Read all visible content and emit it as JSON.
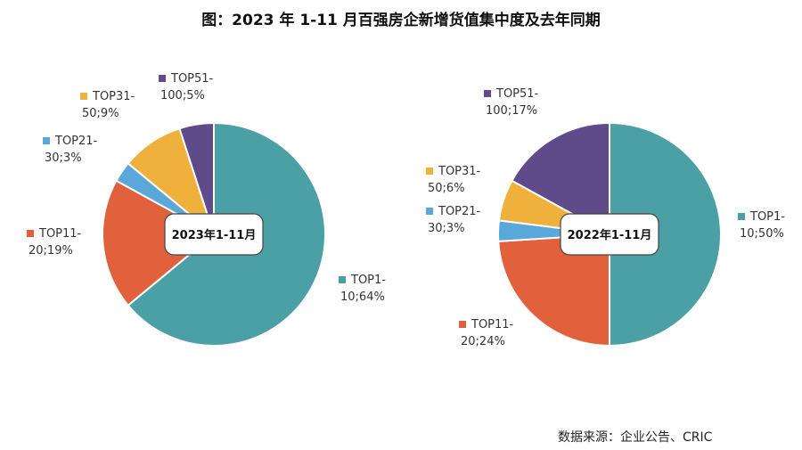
{
  "title": "图：2023 年 1-11 月百强房企新增货值集中度及去年同期",
  "source": "数据来源：企业公告、CRIC",
  "colors": {
    "TOP1-10": "#4aa0a5",
    "TOP11-20": "#e0613b",
    "TOP21-30": "#5aa7d9",
    "TOP31-50": "#efb13b",
    "TOP51-100": "#5f4a8a"
  },
  "chart_data": [
    {
      "type": "pie",
      "center_label": "2023年1-11月",
      "slices": [
        {
          "name": "TOP1-10",
          "value": 64,
          "label_lines": [
            "TOP1-",
            "10;64%"
          ]
        },
        {
          "name": "TOP11-20",
          "value": 19,
          "label_lines": [
            "TOP11-",
            "20;19%"
          ]
        },
        {
          "name": "TOP21-30",
          "value": 3,
          "label_lines": [
            "TOP21-",
            "30;3%"
          ]
        },
        {
          "name": "TOP31-50",
          "value": 9,
          "label_lines": [
            "TOP31-",
            "50;9%"
          ]
        },
        {
          "name": "TOP51-100",
          "value": 5,
          "label_lines": [
            "TOP51-",
            "100;5%"
          ]
        }
      ]
    },
    {
      "type": "pie",
      "center_label": "2022年1-11月",
      "slices": [
        {
          "name": "TOP1-10",
          "value": 50,
          "label_lines": [
            "TOP1-",
            "10;50%"
          ]
        },
        {
          "name": "TOP11-20",
          "value": 24,
          "label_lines": [
            "TOP11-",
            "20;24%"
          ]
        },
        {
          "name": "TOP21-30",
          "value": 3,
          "label_lines": [
            "TOP21-",
            "30;3%"
          ]
        },
        {
          "name": "TOP31-50",
          "value": 6,
          "label_lines": [
            "TOP31-",
            "50;6%"
          ]
        },
        {
          "name": "TOP51-100",
          "value": 17,
          "label_lines": [
            "TOP51-",
            "100;17%"
          ]
        }
      ]
    }
  ]
}
